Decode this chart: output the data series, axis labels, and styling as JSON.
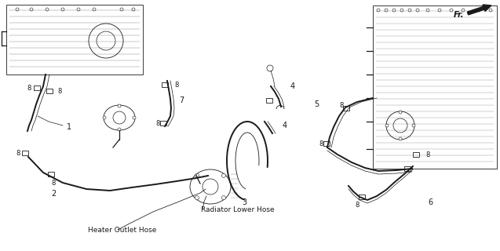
{
  "bg_color": "#ffffff",
  "line_color": "#1a1a1a",
  "labels": {
    "heater_outlet": "Heater Outlet Hose",
    "radiator_lower": "Radiator Lower Hose",
    "fr": "Fr."
  },
  "fig_width": 6.37,
  "fig_height": 3.2,
  "dpi": 100
}
